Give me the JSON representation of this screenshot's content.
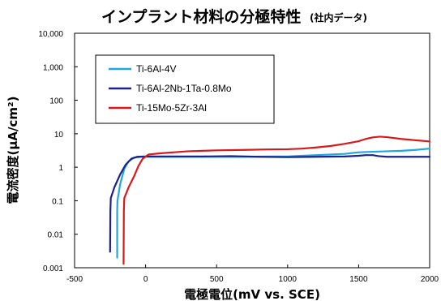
{
  "chart_data": {
    "type": "line",
    "title": "インプラント材料の分極特性",
    "subtitle": "(社内データ)",
    "xlabel": "電極電位(mV vs. SCE)",
    "ylabel": "電流密度(μA/cm²)",
    "xlim": [
      -500,
      2000
    ],
    "ylim": [
      0.001,
      10000
    ],
    "y_scale": "log",
    "grid": false,
    "legend_position": "top-left",
    "x_ticks": [
      "-500",
      "0",
      "500",
      "1000",
      "1500",
      "2000"
    ],
    "y_ticks": [
      "10,000",
      "1,000",
      "100",
      "10",
      "1",
      "0.1",
      "0.01",
      "0.001"
    ],
    "series": [
      {
        "name": "Ti-6Al-4V",
        "color": "#1ea7e0",
        "points": [
          [
            -200,
            0.002
          ],
          [
            -200,
            0.05
          ],
          [
            -198,
            0.1
          ],
          [
            -180,
            0.3
          ],
          [
            -150,
            0.9
          ],
          [
            -120,
            1.5
          ],
          [
            -80,
            1.95
          ],
          [
            -30,
            2.05
          ],
          [
            100,
            2.05
          ],
          [
            300,
            2.05
          ],
          [
            500,
            2.05
          ],
          [
            700,
            2.05
          ],
          [
            900,
            2.1
          ],
          [
            1000,
            2.1
          ],
          [
            1100,
            2.2
          ],
          [
            1200,
            2.3
          ],
          [
            1300,
            2.4
          ],
          [
            1400,
            2.5
          ],
          [
            1500,
            2.8
          ],
          [
            1600,
            2.9
          ],
          [
            1700,
            3.0
          ],
          [
            1800,
            3.1
          ],
          [
            1900,
            3.3
          ],
          [
            2000,
            3.6
          ]
        ]
      },
      {
        "name": "Ti-6Al-2Nb-1Ta-0.8Mo",
        "color": "#1d2288",
        "points": [
          [
            -250,
            0.003
          ],
          [
            -248,
            0.05
          ],
          [
            -245,
            0.12
          ],
          [
            -220,
            0.25
          ],
          [
            -180,
            0.6
          ],
          [
            -140,
            1.2
          ],
          [
            -100,
            1.8
          ],
          [
            -60,
            2.05
          ],
          [
            0,
            2.1
          ],
          [
            200,
            2.1
          ],
          [
            400,
            2.1
          ],
          [
            600,
            2.15
          ],
          [
            800,
            2.05
          ],
          [
            1000,
            2.0
          ],
          [
            1200,
            2.05
          ],
          [
            1400,
            2.1
          ],
          [
            1500,
            2.2
          ],
          [
            1550,
            2.3
          ],
          [
            1600,
            2.3
          ],
          [
            1640,
            2.15
          ],
          [
            1700,
            2.05
          ],
          [
            1800,
            2.05
          ],
          [
            1900,
            2.05
          ],
          [
            2000,
            2.05
          ]
        ]
      },
      {
        "name": "Ti-15Mo-5Zr-3Al",
        "color": "#d7191c",
        "points": [
          [
            -155,
            0.0013
          ],
          [
            -153,
            0.05
          ],
          [
            -150,
            0.12
          ],
          [
            -120,
            0.25
          ],
          [
            -80,
            0.55
          ],
          [
            -50,
            1.1
          ],
          [
            -20,
            1.8
          ],
          [
            20,
            2.4
          ],
          [
            100,
            2.6
          ],
          [
            200,
            2.8
          ],
          [
            300,
            3.0
          ],
          [
            400,
            3.1
          ],
          [
            500,
            3.2
          ],
          [
            700,
            3.3
          ],
          [
            850,
            3.4
          ],
          [
            1000,
            3.45
          ],
          [
            1100,
            3.6
          ],
          [
            1200,
            3.9
          ],
          [
            1300,
            4.3
          ],
          [
            1400,
            5.0
          ],
          [
            1500,
            6.0
          ],
          [
            1550,
            7.0
          ],
          [
            1600,
            7.8
          ],
          [
            1650,
            8.2
          ],
          [
            1700,
            7.9
          ],
          [
            1800,
            7.0
          ],
          [
            1900,
            6.4
          ],
          [
            2000,
            5.9
          ]
        ]
      }
    ]
  }
}
